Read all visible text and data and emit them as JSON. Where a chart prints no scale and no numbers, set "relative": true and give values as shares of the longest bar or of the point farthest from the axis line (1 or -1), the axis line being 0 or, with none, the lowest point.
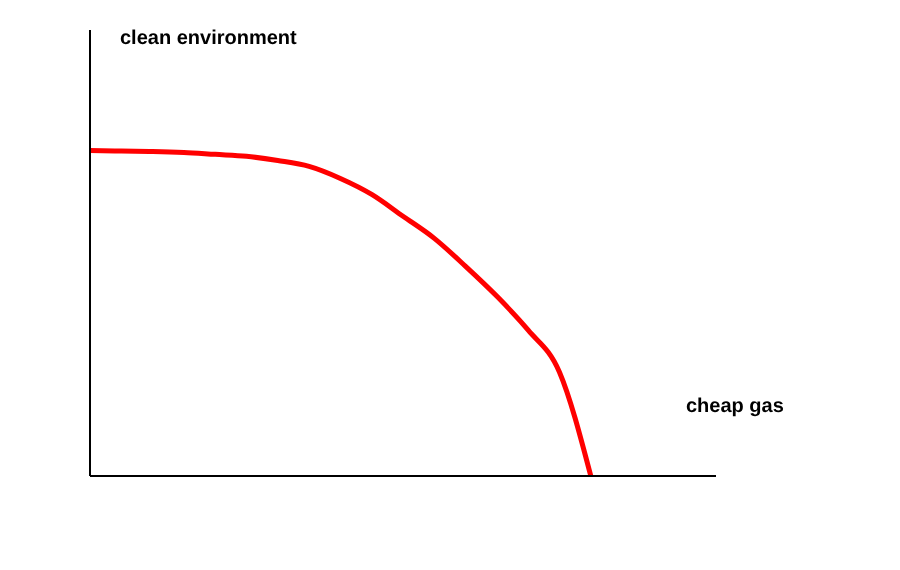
{
  "chart_data": {
    "type": "line",
    "relative": true,
    "annotations": [
      "clean environment"
    ],
    "xlabel": "cheap gas",
    "categories": [
      null,
      null,
      null,
      null,
      null,
      null,
      null,
      null,
      null,
      null,
      null,
      null,
      null,
      null,
      null,
      null,
      null,
      null,
      null,
      null,
      null
    ],
    "series": [
      {
        "color": "#ff0000",
        "values": [
          1.0,
          0.998,
          0.997,
          0.994,
          0.988,
          0.982,
          0.969,
          0.951,
          0.914,
          0.865,
          0.798,
          0.73,
          0.644,
          0.552,
          0.448,
          0.319,
          0,
          null,
          null,
          null,
          null
        ]
      }
    ],
    "marker": "none",
    "line_style": "solid",
    "grid": false,
    "legend": false
  }
}
